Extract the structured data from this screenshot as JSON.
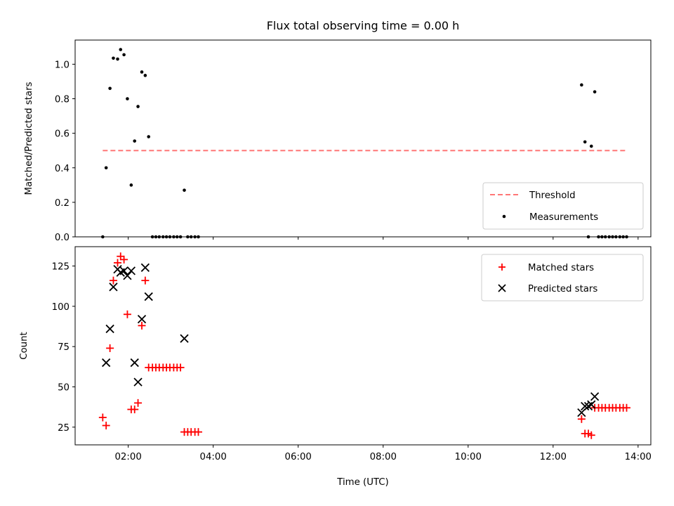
{
  "chart_data": [
    {
      "type": "scatter",
      "title": "Flux total observing time = 0.00 h",
      "ylabel": "Matched/Predicted stars",
      "xlabel": "",
      "x_unit": "hours UTC",
      "xlim": [
        0.75,
        14.3
      ],
      "ylim": [
        0.0,
        1.14
      ],
      "yticks": [
        0.0,
        0.2,
        0.4,
        0.6,
        0.8,
        1.0
      ],
      "ytick_labels": [
        "0.0",
        "0.2",
        "0.4",
        "0.6",
        "0.8",
        "1.0"
      ],
      "legend_position": "lower-right",
      "series": [
        {
          "name": "Threshold",
          "kind": "dashed-line",
          "color": "#ff7777",
          "x": [
            1.4,
            13.75
          ],
          "y": [
            0.5,
            0.5
          ]
        },
        {
          "name": "Measurements",
          "kind": "dots",
          "color": "#000000",
          "x": [
            1.4,
            1.48,
            1.57,
            1.65,
            1.75,
            1.82,
            1.9,
            1.98,
            2.07,
            2.15,
            2.23,
            2.32,
            2.4,
            2.48,
            2.57,
            2.65,
            2.73,
            2.82,
            2.9,
            2.98,
            3.07,
            3.15,
            3.23,
            3.32,
            3.4,
            3.48,
            3.57,
            3.65,
            12.67,
            12.75,
            12.83,
            12.9,
            12.98,
            13.07,
            13.15,
            13.23,
            13.32,
            13.4,
            13.48,
            13.57,
            13.65,
            13.73
          ],
          "y": [
            0.0,
            0.4,
            0.86,
            1.035,
            1.03,
            1.085,
            1.055,
            0.8,
            0.3,
            0.555,
            0.755,
            0.955,
            0.935,
            0.58,
            0.0,
            0.0,
            0.0,
            0.0,
            0.0,
            0.0,
            0.0,
            0.0,
            0.0,
            0.27,
            0.0,
            0.0,
            0.0,
            0.0,
            0.88,
            0.55,
            0.0,
            0.525,
            0.84,
            0.0,
            0.0,
            0.0,
            0.0,
            0.0,
            0.0,
            0.0,
            0.0,
            0.0
          ]
        }
      ]
    },
    {
      "type": "scatter",
      "title": "",
      "xlabel": "Time (UTC)",
      "ylabel": "Count",
      "x_unit": "hours UTC",
      "xlim": [
        0.75,
        14.3
      ],
      "ylim": [
        14,
        137
      ],
      "xticks": [
        2,
        4,
        6,
        8,
        10,
        12,
        14
      ],
      "xtick_labels": [
        "02:00",
        "04:00",
        "06:00",
        "08:00",
        "10:00",
        "12:00",
        "14:00"
      ],
      "yticks": [
        25,
        50,
        75,
        100,
        125
      ],
      "ytick_labels": [
        "25",
        "50",
        "75",
        "100",
        "125"
      ],
      "legend_position": "upper-right",
      "series": [
        {
          "name": "Matched stars",
          "kind": "plus",
          "color": "#ff0000",
          "x": [
            1.4,
            1.48,
            1.57,
            1.65,
            1.75,
            1.82,
            1.9,
            1.98,
            2.07,
            2.15,
            2.23,
            2.32,
            2.4,
            2.48,
            2.57,
            2.65,
            2.73,
            2.82,
            2.9,
            2.98,
            3.07,
            3.15,
            3.23,
            3.32,
            3.4,
            3.48,
            3.57,
            3.65,
            12.67,
            12.75,
            12.83,
            12.9,
            12.98,
            13.07,
            13.15,
            13.23,
            13.32,
            13.4,
            13.48,
            13.57,
            13.65,
            13.73
          ],
          "y": [
            31,
            26,
            74,
            116,
            127,
            131,
            129,
            95,
            36,
            36,
            40,
            88,
            116,
            62,
            62,
            62,
            62,
            62,
            62,
            62,
            62,
            62,
            62,
            22,
            22,
            22,
            22,
            22,
            30,
            21,
            21,
            20,
            37,
            37,
            37,
            37,
            37,
            37,
            37,
            37,
            37,
            37
          ]
        },
        {
          "name": "Predicted stars",
          "kind": "x",
          "color": "#000000",
          "x": [
            1.48,
            1.57,
            1.65,
            1.75,
            1.82,
            1.9,
            1.98,
            2.07,
            2.15,
            2.23,
            2.32,
            2.4,
            2.48,
            3.32,
            12.67,
            12.75,
            12.83,
            12.9,
            12.98
          ],
          "y": [
            65,
            86,
            112,
            123,
            121,
            122,
            119,
            122,
            65,
            53,
            92,
            124,
            106,
            80,
            34,
            38,
            38,
            39,
            44
          ]
        }
      ]
    }
  ]
}
